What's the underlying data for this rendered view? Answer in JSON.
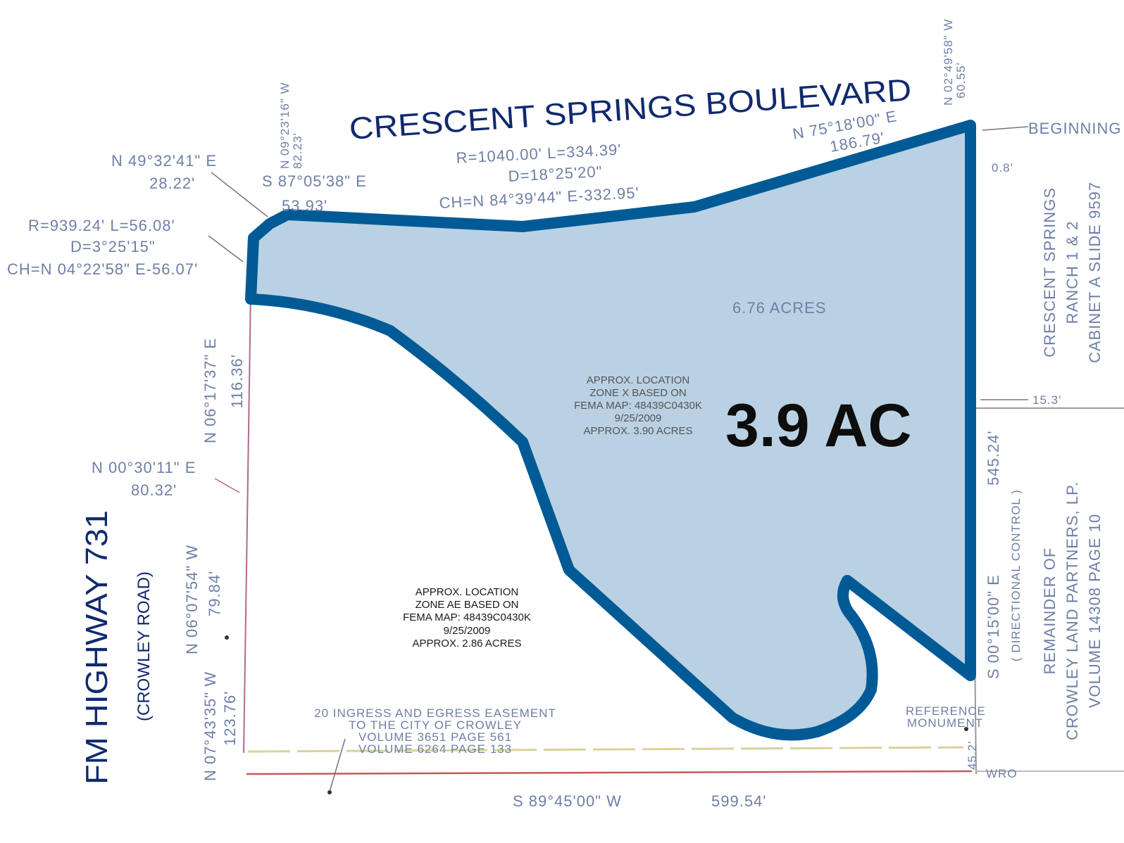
{
  "roads": {
    "north": "CRESCENT SPRINGS BOULEVARD",
    "west_main": "FM HIGHWAY 731",
    "west_sub": "(CROWLEY ROAD)"
  },
  "parcel": {
    "highlight_label": "3.9 AC",
    "total_area": "6.76 ACRES",
    "fill_color": "#b9d1e3",
    "outline_color": "#005a96"
  },
  "zones": {
    "zone_x": [
      "APPROX. LOCATION",
      "ZONE X BASED ON",
      "FEMA MAP: 48439C0430K",
      "9/25/2009",
      "APPROX. 3.90 ACRES"
    ],
    "zone_ae": [
      "APPROX. LOCATION",
      "ZONE AE BASED ON",
      "FEMA MAP: 48439C0430K",
      "9/25/2009",
      "APPROX. 2.86 ACRES"
    ]
  },
  "easement": [
    "20 INGRESS AND EGRESS EASEMENT",
    "TO THE CITY OF CROWLEY",
    "VOLUME 3651 PAGE 561",
    "VOLUME 6264 PAGE 133"
  ],
  "adjacent": {
    "east_top": [
      "CRESCENT SPRINGS",
      "RANCH 1 & 2",
      "CABINET A SLIDE 9597"
    ],
    "east_bottom": [
      "REMAINDER OF",
      "CROWLEY LAND PARTNERS, LP.",
      "VOLUME 14308 PAGE 10"
    ]
  },
  "markers": {
    "beginning": "BEGINNING",
    "reference": [
      "REFERENCE",
      "MONUMENT"
    ],
    "directional": "( DIRECTIONAL CONTROL )"
  },
  "calls": {
    "top_left_bearing": "N 49°32'41\" E",
    "top_left_dist": "28.22'",
    "curve1": [
      "R=939.24'  L=56.08'",
      "D=3°25'15\"",
      "CH=N 04°22'58\" E-56.07'"
    ],
    "s87_bearing": "S 87°05'38\" E",
    "s87_dist": "53.93'",
    "n09_bearing": "N 09°23'16\" W",
    "n09_dist": "82.23'",
    "curve2": [
      "R=1040.00'  L=334.39'",
      "D=18°25'20\"",
      "CH=N 84°39'44\" E-332.95'"
    ],
    "n75_bearing": "N 75°18'00\" E",
    "n75_dist": "186.79'",
    "n02_bearing": "N 02°49'58\" W",
    "n02_dist": "60.55'",
    "ne_small": "0.8'",
    "mid_east": "15.3'",
    "east_bearing": "S 00°15'00\" E",
    "east_dist": "545.24'",
    "south_bearing": "S 89°45'00\" W",
    "south_dist": "599.54'",
    "se_small": "45.2'",
    "wro": "WRO",
    "n06a_bearing": "N 06°17'37\" E",
    "n06a_dist": "116.36'",
    "n00_bearing": "N 00°30'11\" E",
    "n00_dist": "80.32'",
    "n06b_bearing": "N 06°07'54\" W",
    "n06b_dist": "79.84'",
    "n07_bearing": "N 07°43'35\" W",
    "n07_dist": "123.76'"
  }
}
